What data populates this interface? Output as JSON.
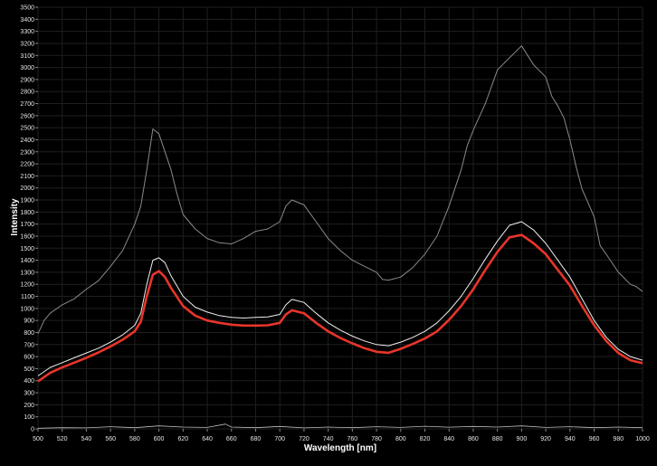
{
  "chart_data": {
    "type": "line",
    "title": "",
    "xlabel": "Wavelength [nm]",
    "ylabel": "Intensity",
    "xlim": [
      500,
      1000
    ],
    "ylim": [
      0,
      3500
    ],
    "x_ticks": [
      500,
      520,
      540,
      560,
      580,
      600,
      620,
      640,
      660,
      680,
      700,
      720,
      740,
      760,
      780,
      800,
      820,
      840,
      860,
      880,
      900,
      920,
      940,
      960,
      980,
      1000
    ],
    "y_ticks": [
      0,
      100,
      200,
      300,
      400,
      500,
      600,
      700,
      800,
      900,
      1000,
      1100,
      1200,
      1300,
      1400,
      1500,
      1600,
      1700,
      1800,
      1900,
      2000,
      2100,
      2200,
      2300,
      2400,
      2500,
      2600,
      2700,
      2800,
      2900,
      3000,
      3100,
      3200,
      3300,
      3400,
      3500
    ],
    "grid": true,
    "series": [
      {
        "color": "#8a8a8a",
        "width": 1,
        "points": [
          [
            500,
            790
          ],
          [
            505,
            900
          ],
          [
            510,
            960
          ],
          [
            520,
            1030
          ],
          [
            530,
            1080
          ],
          [
            540,
            1160
          ],
          [
            550,
            1230
          ],
          [
            560,
            1350
          ],
          [
            570,
            1480
          ],
          [
            580,
            1700
          ],
          [
            585,
            1850
          ],
          [
            590,
            2150
          ],
          [
            595,
            2490
          ],
          [
            600,
            2450
          ],
          [
            605,
            2300
          ],
          [
            610,
            2150
          ],
          [
            615,
            1950
          ],
          [
            620,
            1780
          ],
          [
            630,
            1660
          ],
          [
            640,
            1580
          ],
          [
            650,
            1545
          ],
          [
            660,
            1535
          ],
          [
            670,
            1580
          ],
          [
            680,
            1640
          ],
          [
            690,
            1660
          ],
          [
            700,
            1720
          ],
          [
            705,
            1850
          ],
          [
            710,
            1900
          ],
          [
            720,
            1860
          ],
          [
            730,
            1720
          ],
          [
            740,
            1580
          ],
          [
            750,
            1480
          ],
          [
            760,
            1400
          ],
          [
            770,
            1350
          ],
          [
            780,
            1300
          ],
          [
            785,
            1240
          ],
          [
            790,
            1235
          ],
          [
            800,
            1260
          ],
          [
            810,
            1340
          ],
          [
            820,
            1450
          ],
          [
            830,
            1600
          ],
          [
            840,
            1850
          ],
          [
            850,
            2150
          ],
          [
            855,
            2350
          ],
          [
            860,
            2480
          ],
          [
            870,
            2700
          ],
          [
            880,
            2980
          ],
          [
            890,
            3080
          ],
          [
            895,
            3130
          ],
          [
            900,
            3180
          ],
          [
            905,
            3100
          ],
          [
            910,
            3020
          ],
          [
            920,
            2920
          ],
          [
            925,
            2760
          ],
          [
            930,
            2680
          ],
          [
            935,
            2580
          ],
          [
            940,
            2400
          ],
          [
            945,
            2180
          ],
          [
            950,
            1990
          ],
          [
            960,
            1760
          ],
          [
            965,
            1520
          ],
          [
            970,
            1450
          ],
          [
            980,
            1300
          ],
          [
            990,
            1200
          ],
          [
            995,
            1180
          ],
          [
            1000,
            1140
          ]
        ]
      },
      {
        "color": "#f0f0f0",
        "width": 1,
        "points": [
          [
            500,
            440
          ],
          [
            510,
            510
          ],
          [
            520,
            550
          ],
          [
            530,
            590
          ],
          [
            540,
            630
          ],
          [
            550,
            670
          ],
          [
            560,
            720
          ],
          [
            570,
            780
          ],
          [
            580,
            860
          ],
          [
            585,
            960
          ],
          [
            590,
            1200
          ],
          [
            595,
            1400
          ],
          [
            600,
            1420
          ],
          [
            605,
            1380
          ],
          [
            610,
            1270
          ],
          [
            620,
            1100
          ],
          [
            630,
            1010
          ],
          [
            640,
            970
          ],
          [
            650,
            940
          ],
          [
            660,
            925
          ],
          [
            670,
            920
          ],
          [
            680,
            925
          ],
          [
            690,
            930
          ],
          [
            700,
            950
          ],
          [
            705,
            1030
          ],
          [
            710,
            1075
          ],
          [
            720,
            1050
          ],
          [
            730,
            960
          ],
          [
            740,
            880
          ],
          [
            750,
            820
          ],
          [
            760,
            770
          ],
          [
            770,
            730
          ],
          [
            780,
            700
          ],
          [
            790,
            690
          ],
          [
            800,
            720
          ],
          [
            810,
            760
          ],
          [
            820,
            810
          ],
          [
            830,
            880
          ],
          [
            840,
            980
          ],
          [
            850,
            1100
          ],
          [
            860,
            1250
          ],
          [
            870,
            1410
          ],
          [
            880,
            1560
          ],
          [
            890,
            1690
          ],
          [
            900,
            1720
          ],
          [
            910,
            1650
          ],
          [
            920,
            1540
          ],
          [
            930,
            1400
          ],
          [
            940,
            1260
          ],
          [
            950,
            1080
          ],
          [
            960,
            900
          ],
          [
            970,
            760
          ],
          [
            980,
            660
          ],
          [
            990,
            600
          ],
          [
            1000,
            570
          ]
        ]
      },
      {
        "color": "#e8352a",
        "width": 2.6,
        "points": [
          [
            500,
            395
          ],
          [
            510,
            465
          ],
          [
            520,
            510
          ],
          [
            530,
            550
          ],
          [
            540,
            590
          ],
          [
            550,
            635
          ],
          [
            560,
            685
          ],
          [
            570,
            740
          ],
          [
            580,
            810
          ],
          [
            585,
            890
          ],
          [
            590,
            1100
          ],
          [
            595,
            1280
          ],
          [
            600,
            1310
          ],
          [
            605,
            1260
          ],
          [
            610,
            1170
          ],
          [
            620,
            1020
          ],
          [
            630,
            940
          ],
          [
            640,
            900
          ],
          [
            650,
            880
          ],
          [
            660,
            865
          ],
          [
            670,
            858
          ],
          [
            680,
            858
          ],
          [
            690,
            860
          ],
          [
            700,
            880
          ],
          [
            705,
            950
          ],
          [
            710,
            985
          ],
          [
            720,
            960
          ],
          [
            730,
            880
          ],
          [
            740,
            810
          ],
          [
            750,
            755
          ],
          [
            760,
            710
          ],
          [
            770,
            670
          ],
          [
            780,
            640
          ],
          [
            790,
            632
          ],
          [
            800,
            665
          ],
          [
            810,
            705
          ],
          [
            820,
            750
          ],
          [
            830,
            810
          ],
          [
            840,
            905
          ],
          [
            850,
            1020
          ],
          [
            860,
            1160
          ],
          [
            870,
            1320
          ],
          [
            880,
            1470
          ],
          [
            890,
            1590
          ],
          [
            900,
            1610
          ],
          [
            910,
            1540
          ],
          [
            920,
            1450
          ],
          [
            930,
            1320
          ],
          [
            940,
            1190
          ],
          [
            950,
            1020
          ],
          [
            960,
            860
          ],
          [
            970,
            730
          ],
          [
            980,
            630
          ],
          [
            990,
            570
          ],
          [
            1000,
            545
          ]
        ]
      },
      {
        "color": "#bfbfbf",
        "width": 0.8,
        "points": [
          [
            500,
            5
          ],
          [
            520,
            10
          ],
          [
            540,
            8
          ],
          [
            560,
            18
          ],
          [
            580,
            10
          ],
          [
            600,
            25
          ],
          [
            620,
            15
          ],
          [
            640,
            12
          ],
          [
            655,
            40
          ],
          [
            660,
            15
          ],
          [
            680,
            10
          ],
          [
            700,
            20
          ],
          [
            720,
            8
          ],
          [
            740,
            15
          ],
          [
            760,
            10
          ],
          [
            780,
            18
          ],
          [
            800,
            12
          ],
          [
            820,
            22
          ],
          [
            840,
            14
          ],
          [
            860,
            20
          ],
          [
            880,
            15
          ],
          [
            900,
            25
          ],
          [
            920,
            12
          ],
          [
            940,
            18
          ],
          [
            960,
            10
          ],
          [
            980,
            15
          ],
          [
            1000,
            10
          ]
        ]
      }
    ]
  }
}
